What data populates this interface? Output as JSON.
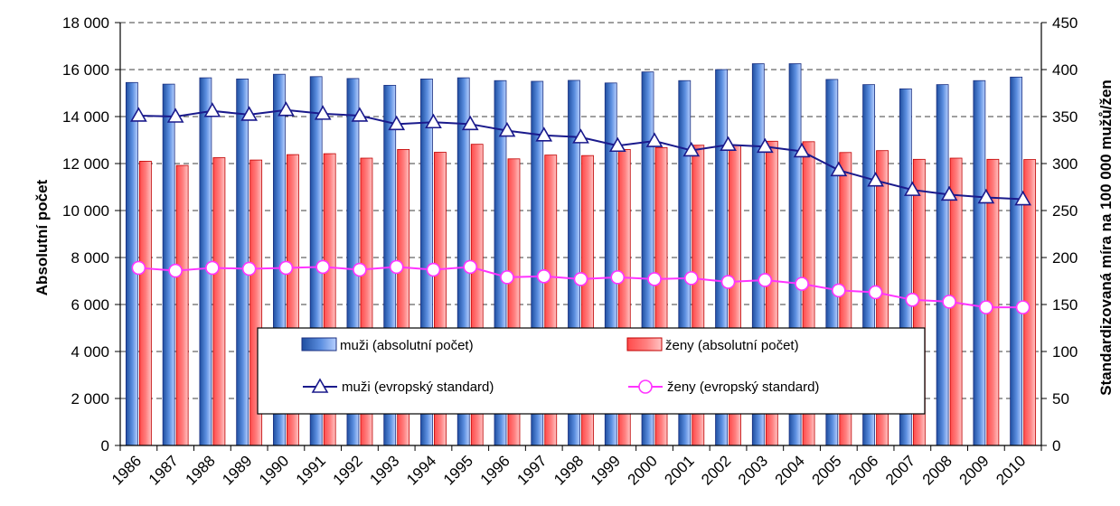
{
  "chart_data": {
    "type": "bar",
    "categories": [
      "1986",
      "1987",
      "1988",
      "1989",
      "1990",
      "1991",
      "1992",
      "1993",
      "1994",
      "1995",
      "1996",
      "1997",
      "1998",
      "1999",
      "2000",
      "2001",
      "2002",
      "2003",
      "2004",
      "2005",
      "2006",
      "2007",
      "2008",
      "2009",
      "2010"
    ],
    "series": [
      {
        "name": "muži (absolutní počet)",
        "type": "bar",
        "axis": "left",
        "color": "#2e5fb0",
        "values": [
          15450,
          15380,
          15650,
          15600,
          15800,
          15700,
          15620,
          15330,
          15600,
          15650,
          15530,
          15500,
          15540,
          15430,
          15900,
          15530,
          16000,
          16250,
          16250,
          15580,
          15360,
          15180,
          15360,
          15530,
          15680
        ]
      },
      {
        "name": "ženy (absolutní počet)",
        "type": "bar",
        "axis": "left",
        "color": "#ff7070",
        "values": [
          12100,
          11920,
          12250,
          12150,
          12380,
          12420,
          12230,
          12600,
          12480,
          12820,
          12200,
          12360,
          12340,
          12600,
          12680,
          12780,
          12780,
          12950,
          12930,
          12470,
          12550,
          12180,
          12230,
          12180,
          12170
        ]
      },
      {
        "name": "muži (evropský standard)",
        "type": "line",
        "axis": "right",
        "color": "#1a1a8c",
        "marker": "triangle",
        "values": [
          351,
          350,
          356,
          352,
          357,
          353,
          351,
          342,
          344,
          342,
          335,
          330,
          328,
          319,
          324,
          314,
          320,
          318,
          313,
          293,
          282,
          272,
          267,
          264,
          262
        ]
      },
      {
        "name": "ženy (evropský standard)",
        "type": "line",
        "axis": "right",
        "color": "#ff33ff",
        "marker": "circle",
        "values": [
          189,
          186,
          189,
          188,
          189,
          190,
          187,
          190,
          187,
          190,
          179,
          180,
          177,
          179,
          177,
          178,
          174,
          176,
          172,
          165,
          163,
          155,
          153,
          147,
          147
        ]
      }
    ],
    "y_left": {
      "label": "Absolutní počet",
      "min": 0,
      "max": 18000,
      "step": 2000,
      "tick_labels": [
        "0",
        "2 000",
        "4 000",
        "6 000",
        "8 000",
        "10 000",
        "12 000",
        "14 000",
        "16 000",
        "18 000"
      ]
    },
    "y_right": {
      "label": "Standardizovaná míra na 100 000 mužů/žen",
      "min": 0,
      "max": 450,
      "step": 50,
      "tick_labels": [
        "0",
        "50",
        "100",
        "150",
        "200",
        "250",
        "300",
        "350",
        "400",
        "450"
      ]
    },
    "grid": "horizontal dashed",
    "legend": "bottom-center inside plot"
  }
}
